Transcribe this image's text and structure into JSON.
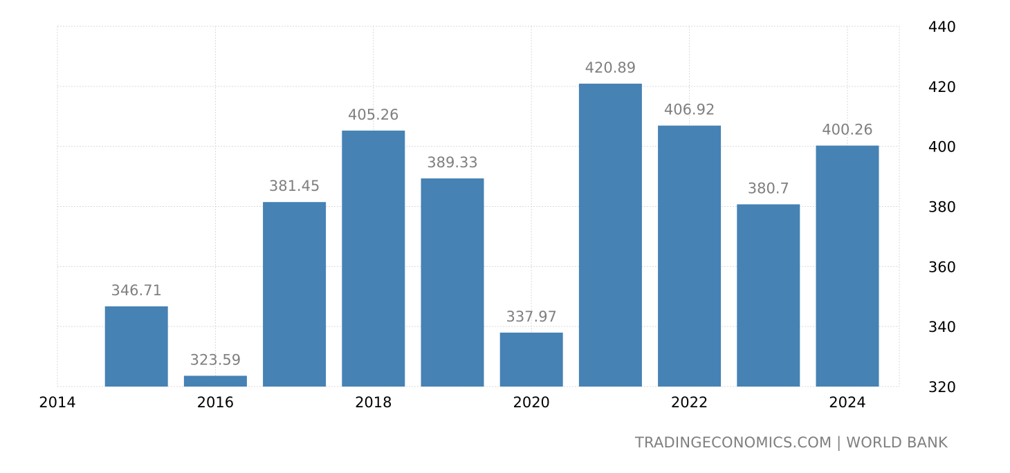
{
  "chart_data": {
    "type": "bar",
    "categories": [
      "2015",
      "2016",
      "2017",
      "2018",
      "2019",
      "2020",
      "2021",
      "2022",
      "2023",
      "2024"
    ],
    "values": [
      346.71,
      323.59,
      381.45,
      405.26,
      389.33,
      337.97,
      420.89,
      406.92,
      380.7,
      400.26
    ],
    "value_labels": [
      "346.71",
      "323.59",
      "381.45",
      "405.26",
      "389.33",
      "337.97",
      "420.89",
      "406.92",
      "380.7",
      "400.26"
    ],
    "x_ticks": [
      "2014",
      "2016",
      "2018",
      "2020",
      "2022",
      "2024"
    ],
    "x_tick_years": [
      2014,
      2016,
      2018,
      2020,
      2022,
      2024
    ],
    "y_ticks": [
      320,
      340,
      360,
      380,
      400,
      420,
      440
    ],
    "ylim": [
      320,
      440
    ],
    "y_axis_side": "right",
    "grid": true,
    "bar_color": "#4682b4",
    "label_color": "#7f7f7f",
    "title": "",
    "xlabel": "",
    "ylabel": ""
  },
  "footer": {
    "source": "TRADINGECONOMICS.COM | WORLD BANK"
  }
}
